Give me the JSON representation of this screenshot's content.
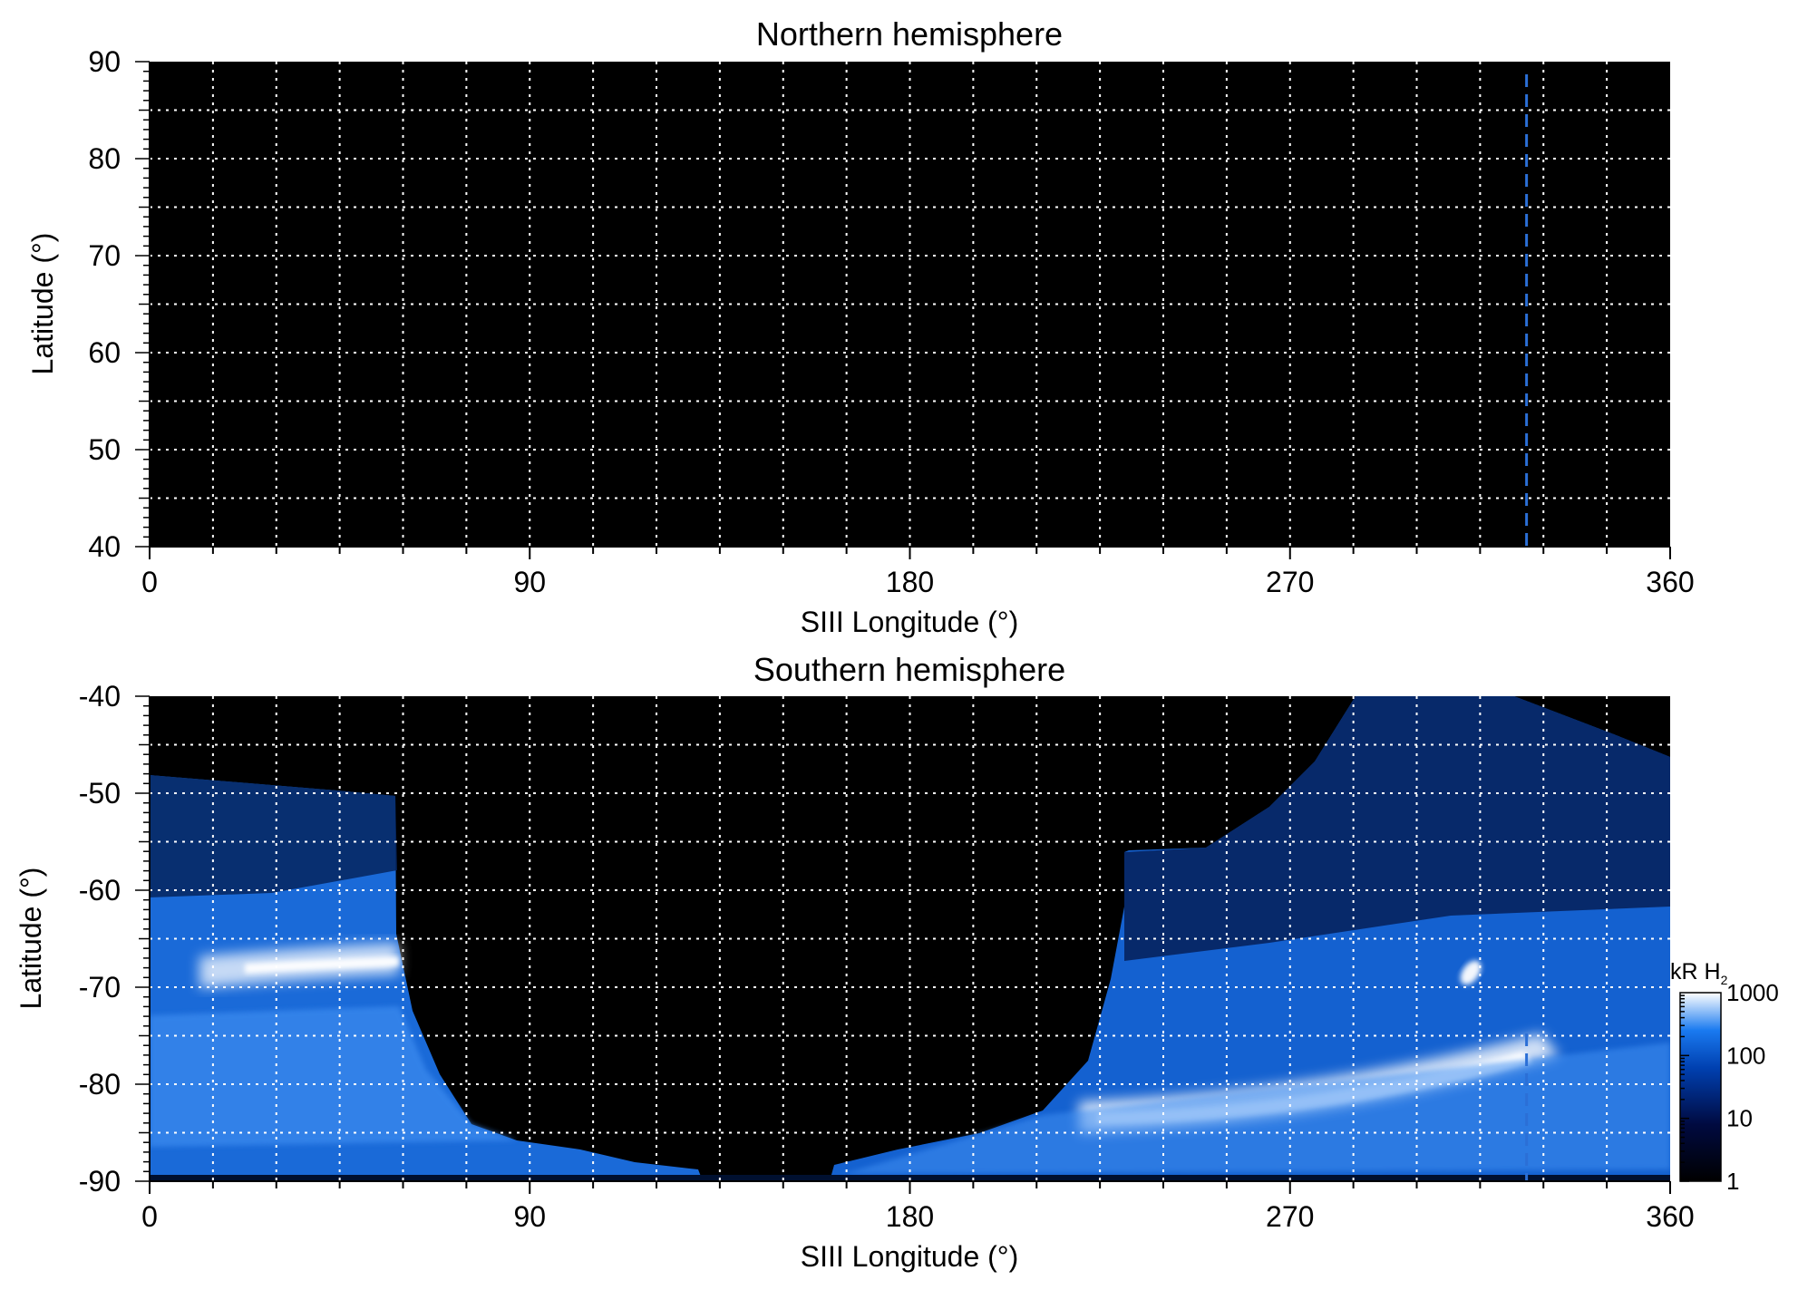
{
  "chart_data": [
    {
      "type": "heatmap",
      "title": "Northern hemisphere",
      "xlabel": "SIII Longitude (°)",
      "ylabel": "Latitude (°)",
      "xlim": [
        0,
        360
      ],
      "ylim": [
        40,
        90
      ],
      "x_ticks": [
        0,
        90,
        180,
        270,
        360
      ],
      "y_ticks": [
        40,
        50,
        60,
        70,
        80,
        90
      ],
      "grid": true,
      "grid_x_step": 15,
      "grid_y_step": 5,
      "emission": "none",
      "marker_longitude": 326,
      "marker_color": "#2b6fd6"
    },
    {
      "type": "heatmap",
      "title": "Southern hemisphere",
      "xlabel": "SIII Longitude (°)",
      "ylabel": "Latitude (°)",
      "xlim": [
        0,
        360
      ],
      "ylim": [
        -90,
        -40
      ],
      "x_ticks": [
        0,
        90,
        180,
        270,
        360
      ],
      "y_ticks": [
        -90,
        -80,
        -70,
        -60,
        -50,
        -40
      ],
      "grid": true,
      "grid_x_step": 15,
      "grid_y_step": 5,
      "emission": "auroral",
      "marker_longitude": 326,
      "marker_color": "#2b6fd6",
      "colorbar": {
        "label": "kR H",
        "label_subscript": "2",
        "scale": "log",
        "range": [
          1,
          1000
        ],
        "ticks": [
          1,
          10,
          100,
          1000
        ],
        "tick_labels": [
          "1",
          "10",
          "100",
          "1000"
        ],
        "colors": [
          "#000000",
          "#000a40",
          "#0040b0",
          "#1a7af0",
          "#ffffff"
        ]
      }
    }
  ]
}
